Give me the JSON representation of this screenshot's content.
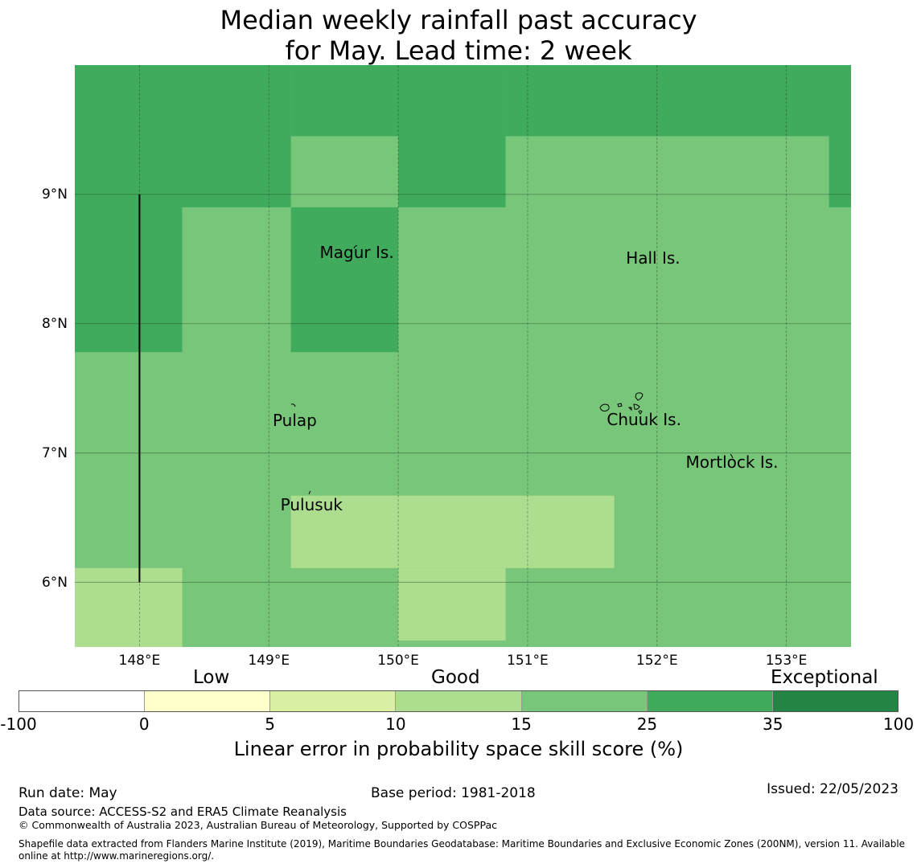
{
  "title_line1": "Median weekly rainfall past accuracy",
  "title_line2": "for May. Lead time: 2 week",
  "map": {
    "lon_range": [
      147.5,
      153.5
    ],
    "lat_range": [
      5.5,
      10.0
    ],
    "lat_ticks": [
      {
        "value": 9,
        "label": "9°N"
      },
      {
        "value": 8,
        "label": "8°N"
      },
      {
        "value": 7,
        "label": "7°N"
      },
      {
        "value": 6,
        "label": "6°N"
      }
    ],
    "lon_ticks": [
      {
        "value": 148,
        "label": "148°E"
      },
      {
        "value": 149,
        "label": "149°E"
      },
      {
        "value": 150,
        "label": "150°E"
      },
      {
        "value": 151,
        "label": "151°E"
      },
      {
        "value": 152,
        "label": "152°E"
      },
      {
        "value": 153,
        "label": "153°E"
      }
    ],
    "skill_colors": {
      "25-35": "#41ab5d",
      "15-25": "#78c679",
      "10-15": "#addd8e"
    },
    "skill_cells": [
      {
        "lon": [
          147.5,
          153.5
        ],
        "lat": [
          5.5,
          10.0
        ],
        "class": "15-25"
      },
      {
        "lon": [
          147.5,
          149.17
        ],
        "lat": [
          9.45,
          10.0
        ],
        "class": "25-35"
      },
      {
        "lon": [
          147.5,
          148.33
        ],
        "lat": [
          7.78,
          9.45
        ],
        "class": "25-35"
      },
      {
        "lon": [
          148.33,
          149.17
        ],
        "lat": [
          8.9,
          9.45
        ],
        "class": "25-35"
      },
      {
        "lon": [
          149.17,
          150.0
        ],
        "lat": [
          9.45,
          10.0
        ],
        "class": "25-35"
      },
      {
        "lon": [
          149.17,
          150.0
        ],
        "lat": [
          7.78,
          8.9
        ],
        "class": "25-35"
      },
      {
        "lon": [
          150.0,
          150.83
        ],
        "lat": [
          8.9,
          10.0
        ],
        "class": "25-35"
      },
      {
        "lon": [
          150.83,
          153.5
        ],
        "lat": [
          9.45,
          10.0
        ],
        "class": "25-35"
      },
      {
        "lon": [
          153.33,
          153.5
        ],
        "lat": [
          8.9,
          9.45
        ],
        "class": "25-35"
      },
      {
        "lon": [
          149.17,
          151.67
        ],
        "lat": [
          6.11,
          6.67
        ],
        "class": "10-15"
      },
      {
        "lon": [
          147.5,
          148.33
        ],
        "lat": [
          5.5,
          6.11
        ],
        "class": "10-15"
      },
      {
        "lon": [
          150.0,
          150.83
        ],
        "lat": [
          5.55,
          6.11
        ],
        "class": "10-15"
      }
    ],
    "eez_line": {
      "lon": 148.0,
      "lat": [
        6.0,
        9.0
      ]
    },
    "places": [
      {
        "name": "Magur Is.",
        "lon": 149.68,
        "lat": 8.55
      },
      {
        "name": "Hall Is.",
        "lon": 151.97,
        "lat": 8.51
      },
      {
        "name": "Pulap",
        "lon": 149.2,
        "lat": 7.25
      },
      {
        "name": "Chuuk Is.",
        "lon": 151.9,
        "lat": 7.26
      },
      {
        "name": "Mortlock Is.",
        "lon": 152.58,
        "lat": 6.93
      },
      {
        "name": "Pulusuk",
        "lon": 149.33,
        "lat": 6.6
      }
    ]
  },
  "colorbar": {
    "categories": [
      "Low",
      "Good",
      "Exceptional"
    ],
    "ticks": [
      "-100",
      "0",
      "5",
      "10",
      "15",
      "25",
      "35",
      "100"
    ],
    "colors": [
      "#ffffff",
      "#ffffcc",
      "#d9f0a3",
      "#addd8e",
      "#78c679",
      "#41ab5d",
      "#238443"
    ],
    "label": "Linear error in probability space skill score (%)"
  },
  "footer": {
    "run_date": "Run date: May",
    "base_period": "Base period: 1981-2018",
    "issued": "Issued: 22/05/2023",
    "data_source": "Data source: ACCESS-S2 and ERA5 Climate Reanalysis",
    "copyright": "© Commonwealth of Australia 2023, Australian Bureau of Meteorology, Supported by COSPPac",
    "shapefile_line1": "Shapefile data extracted from Flanders Marine Institute (2019), Maritime Boundaries Geodatabase: Maritime Boundaries and Exclusive Economic Zones (200NM), version 11. Available",
    "shapefile_line2": "online at http://www.marineregions.org/."
  }
}
